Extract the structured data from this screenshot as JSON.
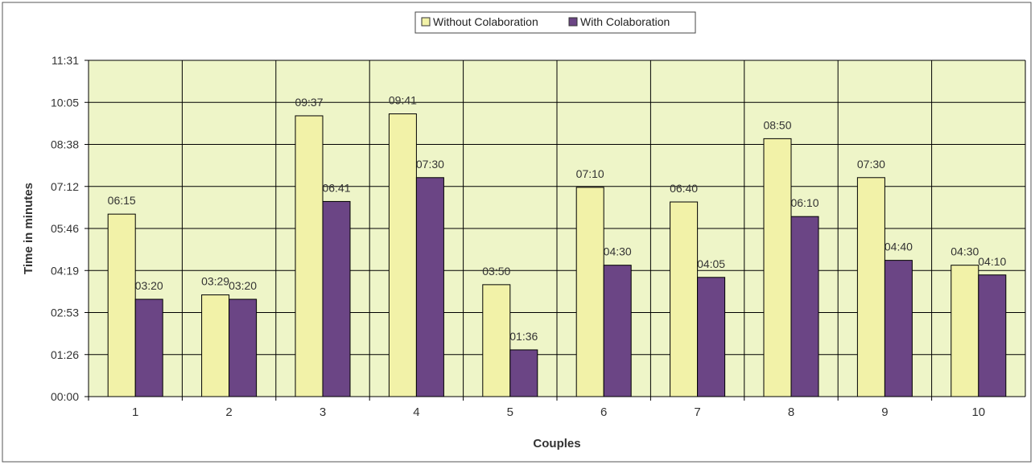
{
  "chart_data": {
    "type": "bar",
    "xlabel": "Couples",
    "ylabel": "Time in minutes",
    "categories": [
      "1",
      "2",
      "3",
      "4",
      "5",
      "6",
      "7",
      "8",
      "9",
      "10"
    ],
    "y_ticks": [
      "00:00",
      "01:26",
      "02:53",
      "04:19",
      "05:46",
      "07:12",
      "08:38",
      "10:05",
      "11:31"
    ],
    "y_unit": "seconds",
    "ylim": [
      0,
      691
    ],
    "grid": true,
    "legend_position": "top-center",
    "series": [
      {
        "name": "Without Colaboration",
        "color": "#f2f2a8",
        "values": [
          375,
          209,
          577,
          581,
          230,
          430,
          400,
          530,
          450,
          270
        ],
        "labels": [
          "06:15",
          "03:29",
          "09:37",
          "09:41",
          "03:50",
          "07:10",
          "06:40",
          "08:50",
          "07:30",
          "04:30"
        ]
      },
      {
        "name": "With Colaboration",
        "color": "#6b4585",
        "values": [
          200,
          200,
          401,
          450,
          96,
          270,
          245,
          370,
          280,
          250
        ],
        "labels": [
          "03:20",
          "03:20",
          "06:41",
          "07:30",
          "01:36",
          "04:30",
          "04:05",
          "06:10",
          "04:40",
          "04:10"
        ]
      }
    ]
  }
}
